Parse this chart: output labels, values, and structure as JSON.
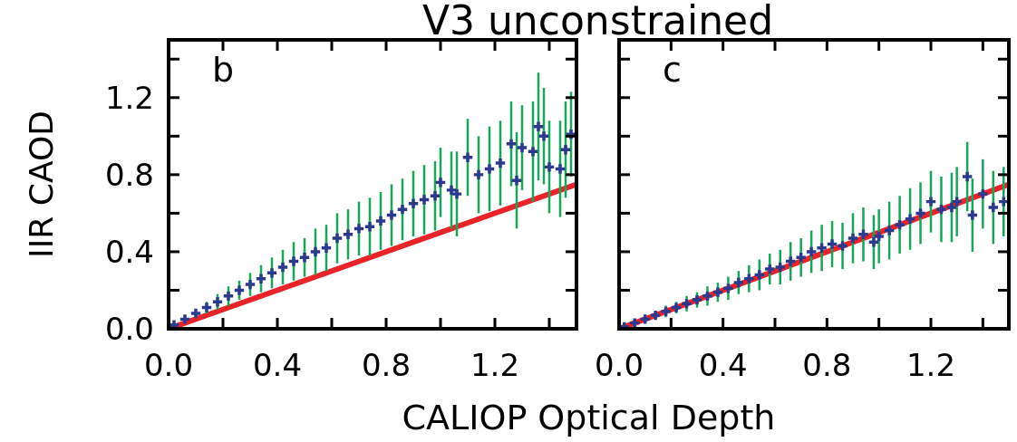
{
  "chart_data": [
    {
      "type": "scatter",
      "title": "V3 unconstrained",
      "xlabel": "CALIOP  Optical Depth",
      "ylabel": "IIR CAOD",
      "annotations": [
        "b"
      ],
      "grid": false,
      "xlim": [
        0,
        1.5
      ],
      "ylim": [
        0,
        1.5
      ],
      "xticks": [
        {
          "value": 0,
          "label": "0.0"
        },
        {
          "value": 0.2,
          "label": null
        },
        {
          "value": 0.4,
          "label": "0.4"
        },
        {
          "value": 0.6,
          "label": null
        },
        {
          "value": 0.8,
          "label": "0.8"
        },
        {
          "value": 1.0,
          "label": null
        },
        {
          "value": 1.2,
          "label": "1.2"
        },
        {
          "value": 1.4,
          "label": null
        }
      ],
      "yticks": [
        {
          "value": 0,
          "label": "0.0"
        },
        {
          "value": 0.2,
          "label": null
        },
        {
          "value": 0.4,
          "label": "0.4"
        },
        {
          "value": 0.6,
          "label": null
        },
        {
          "value": 0.8,
          "label": "0.8"
        },
        {
          "value": 1.0,
          "label": null
        },
        {
          "value": 1.2,
          "label": "1.2"
        },
        {
          "value": 1.4,
          "label": null
        }
      ],
      "series": [
        {
          "type": "line",
          "color": "#e8242a",
          "x": [
            0,
            1.5
          ],
          "values": [
            0,
            0.75
          ]
        },
        {
          "marker": "cross",
          "color": "#2b3a8c",
          "x": [
            0.02,
            0.06,
            0.1,
            0.14,
            0.18,
            0.22,
            0.26,
            0.3,
            0.34,
            0.38,
            0.42,
            0.46,
            0.5,
            0.54,
            0.58,
            0.62,
            0.66,
            0.7,
            0.74,
            0.78,
            0.82,
            0.86,
            0.9,
            0.94,
            0.98,
            1.0,
            1.04,
            1.06,
            1.1,
            1.14,
            1.18,
            1.22,
            1.26,
            1.28,
            1.3,
            1.34,
            1.36,
            1.38,
            1.4,
            1.44,
            1.46,
            1.48
          ],
          "values": [
            0.02,
            0.05,
            0.08,
            0.11,
            0.14,
            0.17,
            0.2,
            0.23,
            0.26,
            0.29,
            0.32,
            0.35,
            0.37,
            0.4,
            0.42,
            0.47,
            0.49,
            0.52,
            0.53,
            0.56,
            0.59,
            0.62,
            0.65,
            0.67,
            0.69,
            0.76,
            0.72,
            0.7,
            0.89,
            0.8,
            0.83,
            0.86,
            0.96,
            0.77,
            0.94,
            0.92,
            1.05,
            1.0,
            0.84,
            0.83,
            0.93,
            1.01
          ],
          "errors": [
            null,
            null,
            null,
            0.03,
            0.04,
            0.05,
            0.05,
            0.06,
            0.07,
            0.08,
            0.09,
            0.1,
            0.1,
            0.12,
            0.12,
            0.13,
            0.13,
            0.14,
            0.15,
            0.15,
            0.16,
            0.16,
            0.17,
            0.18,
            0.18,
            0.18,
            0.2,
            0.22,
            0.2,
            0.2,
            0.22,
            0.22,
            0.22,
            0.25,
            0.22,
            0.26,
            0.28,
            0.25,
            0.24,
            0.25,
            0.25,
            0.22
          ]
        }
      ]
    },
    {
      "type": "scatter",
      "annotations": [
        "c"
      ],
      "grid": false,
      "tick_labels": "x",
      "xlim": [
        0,
        1.5
      ],
      "ylim": [
        0,
        1.5
      ],
      "xticks": [
        {
          "value": 0,
          "label": "0.0"
        },
        {
          "value": 0.2,
          "label": null
        },
        {
          "value": 0.4,
          "label": "0.4"
        },
        {
          "value": 0.6,
          "label": null
        },
        {
          "value": 0.8,
          "label": "0.8"
        },
        {
          "value": 1.0,
          "label": null
        },
        {
          "value": 1.2,
          "label": "1.2"
        },
        {
          "value": 1.4,
          "label": null
        }
      ],
      "yticks": [
        {
          "value": 0,
          "label": null
        },
        {
          "value": 0.2,
          "label": null
        },
        {
          "value": 0.4,
          "label": null
        },
        {
          "value": 0.6,
          "label": null
        },
        {
          "value": 0.8,
          "label": null
        },
        {
          "value": 1.0,
          "label": null
        },
        {
          "value": 1.2,
          "label": null
        },
        {
          "value": 1.4,
          "label": null
        }
      ],
      "series": [
        {
          "type": "line",
          "color": "#e8242a",
          "x": [
            0,
            1.5
          ],
          "values": [
            0,
            0.75
          ]
        },
        {
          "marker": "cross",
          "color": "#2b3a8c",
          "x": [
            0.02,
            0.06,
            0.1,
            0.14,
            0.18,
            0.22,
            0.26,
            0.3,
            0.34,
            0.38,
            0.42,
            0.46,
            0.5,
            0.54,
            0.58,
            0.62,
            0.66,
            0.7,
            0.74,
            0.78,
            0.82,
            0.86,
            0.9,
            0.94,
            0.98,
            1.0,
            1.04,
            1.08,
            1.12,
            1.16,
            1.2,
            1.24,
            1.28,
            1.3,
            1.34,
            1.36,
            1.4,
            1.44,
            1.48
          ],
          "values": [
            0.01,
            0.03,
            0.05,
            0.07,
            0.09,
            0.11,
            0.13,
            0.15,
            0.17,
            0.19,
            0.21,
            0.24,
            0.26,
            0.28,
            0.31,
            0.32,
            0.35,
            0.37,
            0.4,
            0.42,
            0.44,
            0.43,
            0.47,
            0.49,
            0.45,
            0.48,
            0.51,
            0.54,
            0.57,
            0.6,
            0.66,
            0.62,
            0.63,
            0.66,
            0.79,
            0.59,
            0.7,
            0.63,
            0.66
          ],
          "errors": [
            null,
            null,
            null,
            null,
            0.03,
            0.03,
            0.04,
            0.04,
            0.05,
            0.05,
            0.06,
            0.06,
            0.07,
            0.08,
            0.08,
            0.09,
            0.1,
            0.1,
            0.11,
            0.12,
            0.12,
            0.12,
            0.13,
            0.14,
            0.14,
            0.14,
            0.15,
            0.15,
            0.16,
            0.16,
            0.16,
            0.17,
            0.18,
            0.18,
            0.18,
            0.19,
            0.18,
            0.19,
            0.18
          ]
        }
      ]
    }
  ]
}
